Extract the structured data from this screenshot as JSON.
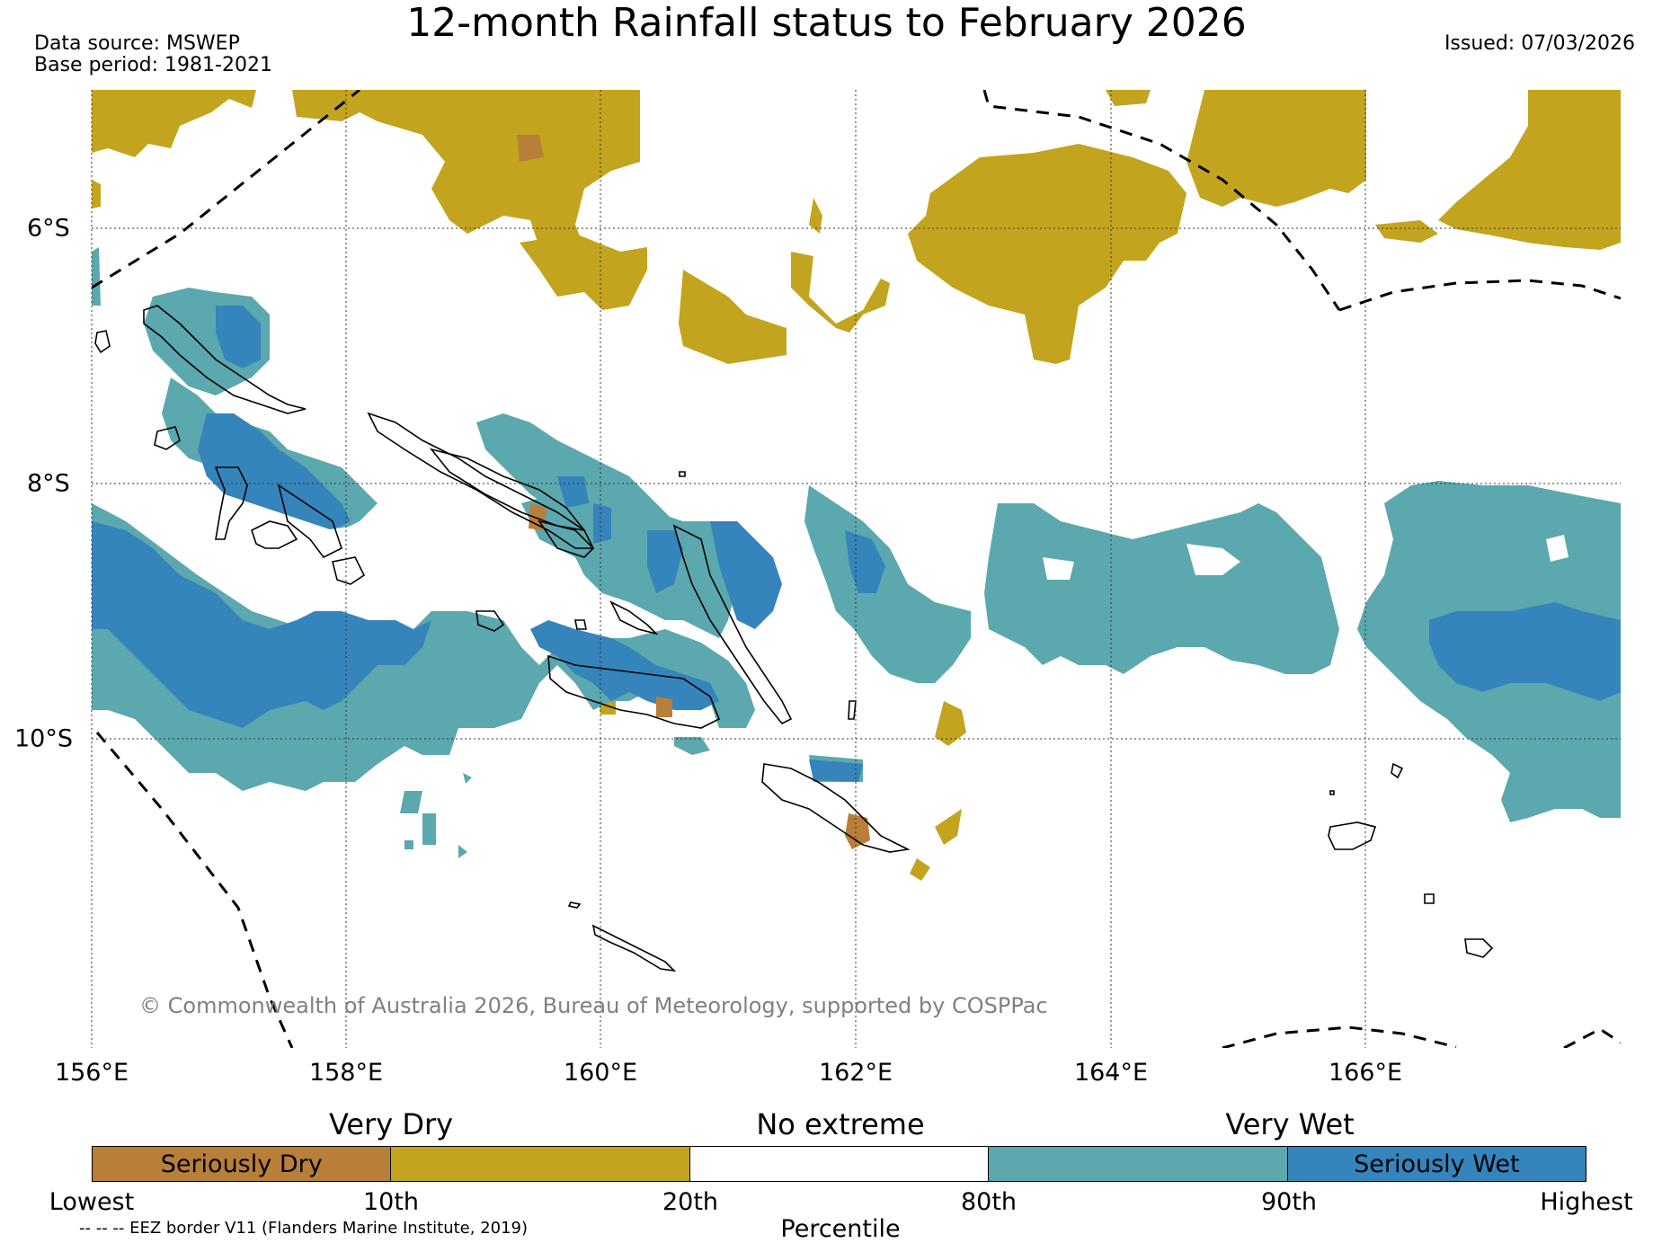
{
  "header": {
    "title": "12-month Rainfall status to February 2026",
    "data_source": "Data source: MSWEP",
    "base_period": "Base period: 1981-2021",
    "issued": "Issued: 07/03/2026"
  },
  "map": {
    "x_ticks": [
      "156°E",
      "158°E",
      "160°E",
      "162°E",
      "164°E",
      "166°E"
    ],
    "y_ticks": [
      "6°S",
      "8°S",
      "10°S"
    ],
    "copyright": "© Commonwealth of Australia 2026, Bureau of Meteorology, supported by COSPPac",
    "colors": {
      "seriously_dry": "#b87f3a",
      "very_dry": "#c3a41e",
      "no_extreme": "#ffffff",
      "very_wet": "#5ba8ae",
      "seriously_wet": "#3584bb"
    }
  },
  "legend": {
    "category_very_dry": "Very Dry",
    "category_no_extreme": "No extreme",
    "category_very_wet": "Very Wet",
    "segments": [
      {
        "label": "Seriously Dry",
        "color": "#b87f3a"
      },
      {
        "label": "",
        "color": "#c3a41e"
      },
      {
        "label": "",
        "color": "#ffffff"
      },
      {
        "label": "",
        "color": "#5ba8ae"
      },
      {
        "label": "Seriously Wet",
        "color": "#3584bb"
      }
    ],
    "percentiles": [
      "Lowest",
      "10th",
      "20th",
      "80th",
      "90th",
      "Highest"
    ],
    "axis_label": "Percentile",
    "eez_note": "-- -- -- EEZ border V11 (Flanders Marine Institute, 2019)"
  }
}
